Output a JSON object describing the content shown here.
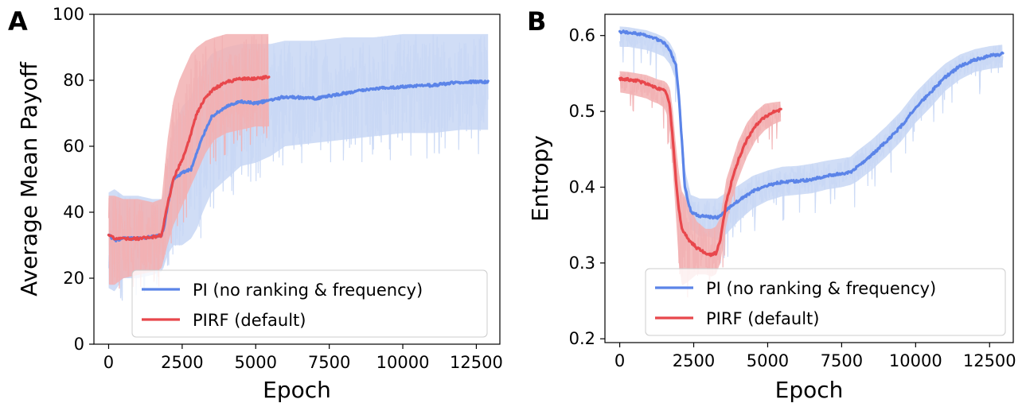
{
  "chart_data": [
    {
      "type": "line",
      "panel_label": "A",
      "xlabel": "Epoch",
      "ylabel": "Average Mean Payoff",
      "xlim": [
        -500,
        13300
      ],
      "ylim": [
        0,
        100
      ],
      "xticks": [
        0,
        2500,
        5000,
        7500,
        10000,
        12500
      ],
      "yticks": [
        0,
        20,
        40,
        60,
        80,
        100
      ],
      "legend_position": "lower-right",
      "series": [
        {
          "name": "PI (no ranking & frequency)",
          "color": "#5b84e8",
          "band_color": "#c8d7f5",
          "x": [
            0,
            200,
            500,
            1000,
            1500,
            1800,
            1900,
            2000,
            2200,
            2500,
            2800,
            3000,
            3200,
            3500,
            4000,
            4500,
            5000,
            5500,
            6000,
            7000,
            8000,
            9000,
            10000,
            11000,
            12000,
            12900
          ],
          "y": [
            33,
            31.5,
            32,
            32,
            32.5,
            33,
            36,
            42,
            50,
            52,
            53,
            58,
            63,
            69,
            72,
            73.5,
            73,
            74,
            75,
            74.5,
            76,
            77.5,
            78,
            78.5,
            79.5,
            79.5
          ],
          "lower": [
            17,
            16,
            20,
            20,
            21,
            22,
            24,
            27,
            30,
            30,
            32,
            35,
            40,
            46,
            50,
            54,
            55,
            57,
            60,
            61,
            62,
            63,
            64,
            64,
            65,
            65
          ],
          "upper": [
            46,
            47,
            45,
            45,
            44,
            44,
            47,
            55,
            65,
            72,
            75,
            80,
            84,
            88,
            90,
            91,
            91,
            91,
            92,
            92,
            93,
            93,
            94,
            94,
            94,
            94
          ]
        },
        {
          "name": "PIRF (default)",
          "color": "#e8474c",
          "band_color": "#f2b0b2",
          "x": [
            0,
            200,
            500,
            1000,
            1500,
            1800,
            2000,
            2200,
            2400,
            2600,
            2800,
            3000,
            3300,
            3600,
            4000,
            4500,
            5000,
            5450
          ],
          "y": [
            33,
            32,
            32,
            32,
            32.5,
            33,
            42,
            50,
            54,
            58,
            64,
            70,
            75,
            77.5,
            79.5,
            80.5,
            80.5,
            81
          ],
          "lower": [
            18,
            18,
            20,
            21,
            22,
            23,
            30,
            36,
            40,
            44,
            48,
            52,
            58,
            62,
            64,
            65,
            66,
            66
          ],
          "upper": [
            45,
            45,
            44,
            44,
            43,
            44,
            62,
            74,
            80,
            84,
            88,
            90,
            92,
            93,
            94,
            94,
            94,
            94
          ]
        }
      ]
    },
    {
      "type": "line",
      "panel_label": "B",
      "xlabel": "Epoch",
      "ylabel": "Entropy",
      "xlim": [
        -500,
        13300
      ],
      "ylim": [
        0.195,
        0.628
      ],
      "xticks": [
        0,
        2500,
        5000,
        7500,
        10000,
        12500
      ],
      "yticks": [
        0.2,
        0.3,
        0.4,
        0.5,
        0.6
      ],
      "ytick_labels": [
        "0.2",
        "0.3",
        "0.4",
        "0.5",
        "0.6"
      ],
      "legend_position": "lower-right",
      "series": [
        {
          "name": "PI (no ranking & frequency)",
          "color": "#5b84e8",
          "band_color": "#c8d7f5",
          "x": [
            0,
            300,
            600,
            900,
            1200,
            1500,
            1700,
            1900,
            2000,
            2100,
            2200,
            2400,
            2700,
            3000,
            3300,
            3600,
            4000,
            4500,
            5000,
            5500,
            6000,
            6500,
            7000,
            7500,
            7800,
            8000,
            8500,
            9000,
            9500,
            10000,
            10500,
            11000,
            11500,
            12000,
            12500,
            12950
          ],
          "y": [
            0.605,
            0.604,
            0.602,
            0.6,
            0.596,
            0.59,
            0.58,
            0.56,
            0.52,
            0.46,
            0.4,
            0.368,
            0.362,
            0.361,
            0.36,
            0.37,
            0.382,
            0.395,
            0.402,
            0.407,
            0.408,
            0.41,
            0.415,
            0.418,
            0.42,
            0.426,
            0.442,
            0.46,
            0.48,
            0.505,
            0.525,
            0.545,
            0.56,
            0.568,
            0.573,
            0.576
          ],
          "lower": [
            0.585,
            0.585,
            0.583,
            0.581,
            0.577,
            0.572,
            0.562,
            0.54,
            0.5,
            0.44,
            0.38,
            0.345,
            0.335,
            0.335,
            0.33,
            0.338,
            0.355,
            0.372,
            0.382,
            0.388,
            0.39,
            0.392,
            0.397,
            0.4,
            0.403,
            0.407,
            0.422,
            0.44,
            0.46,
            0.485,
            0.505,
            0.527,
            0.542,
            0.552,
            0.556,
            0.558
          ],
          "upper": [
            0.612,
            0.611,
            0.609,
            0.607,
            0.603,
            0.598,
            0.59,
            0.575,
            0.54,
            0.485,
            0.425,
            0.39,
            0.385,
            0.385,
            0.385,
            0.393,
            0.402,
            0.415,
            0.422,
            0.427,
            0.428,
            0.431,
            0.435,
            0.438,
            0.44,
            0.447,
            0.462,
            0.48,
            0.5,
            0.525,
            0.545,
            0.563,
            0.575,
            0.582,
            0.586,
            0.588
          ]
        },
        {
          "name": "PIRF (default)",
          "color": "#e8474c",
          "band_color": "#f2b0b2",
          "x": [
            0,
            300,
            600,
            900,
            1100,
            1300,
            1500,
            1600,
            1700,
            1800,
            1900,
            2000,
            2100,
            2300,
            2600,
            2900,
            3100,
            3250,
            3400,
            3500,
            3600,
            3800,
            4000,
            4300,
            4600,
            4900,
            5200,
            5450
          ],
          "y": [
            0.543,
            0.542,
            0.54,
            0.537,
            0.533,
            0.53,
            0.528,
            0.522,
            0.505,
            0.46,
            0.41,
            0.37,
            0.345,
            0.332,
            0.32,
            0.313,
            0.311,
            0.313,
            0.33,
            0.355,
            0.38,
            0.41,
            0.435,
            0.463,
            0.482,
            0.493,
            0.499,
            0.502
          ],
          "lower": [
            0.525,
            0.523,
            0.52,
            0.517,
            0.513,
            0.51,
            0.505,
            0.495,
            0.47,
            0.42,
            0.36,
            0.3,
            0.27,
            0.275,
            0.285,
            0.285,
            0.282,
            0.285,
            0.3,
            0.325,
            0.35,
            0.385,
            0.41,
            0.44,
            0.462,
            0.475,
            0.483,
            0.487
          ],
          "upper": [
            0.553,
            0.552,
            0.55,
            0.548,
            0.545,
            0.542,
            0.54,
            0.537,
            0.53,
            0.5,
            0.455,
            0.42,
            0.395,
            0.38,
            0.355,
            0.345,
            0.345,
            0.348,
            0.36,
            0.385,
            0.41,
            0.435,
            0.46,
            0.485,
            0.5,
            0.51,
            0.512,
            0.513
          ]
        }
      ]
    }
  ]
}
